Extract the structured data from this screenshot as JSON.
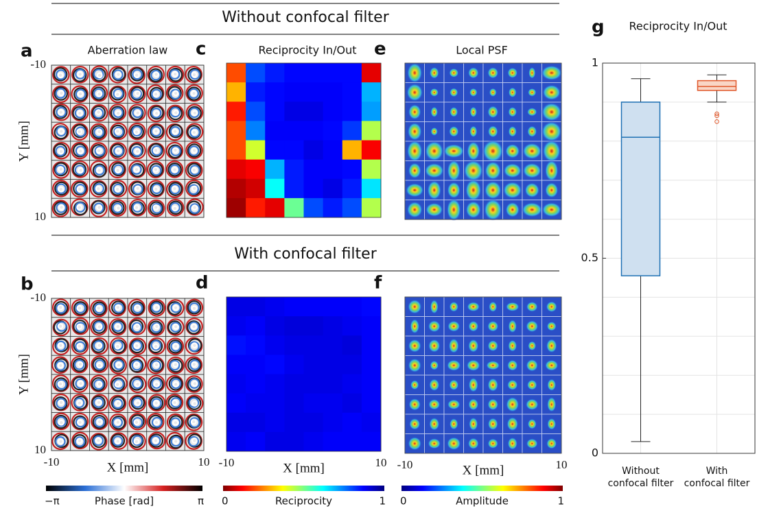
{
  "figure": {
    "headers": [
      "Without confocal filter",
      "With confocal filter"
    ],
    "panel_labels": [
      "a",
      "b",
      "c",
      "d",
      "e",
      "f",
      "g"
    ],
    "titles": [
      "Aberration law",
      "Reciprocity In/Out",
      "Local PSF"
    ],
    "x_label": "X [mm]",
    "y_label": "Y [mm]",
    "extent": [
      -10,
      10
    ],
    "colorbars": [
      {
        "label": "Phase [rad]",
        "ends": [
          "−π",
          "π"
        ]
      },
      {
        "label": "Reciprocity",
        "ends": [
          0,
          1
        ]
      },
      {
        "label": "Amplitude",
        "ends": [
          0,
          1
        ]
      }
    ]
  },
  "chart_data": [
    {
      "type": "heatmap",
      "values": [
        [
          0.2,
          0.8,
          0.85,
          0.87,
          0.87,
          0.87,
          0.87,
          0.1
        ],
        [
          0.3,
          0.85,
          0.87,
          0.88,
          0.88,
          0.88,
          0.87,
          0.7
        ],
        [
          0.15,
          0.8,
          0.87,
          0.9,
          0.9,
          0.88,
          0.87,
          0.72
        ],
        [
          0.2,
          0.75,
          0.88,
          0.88,
          0.88,
          0.87,
          0.82,
          0.45
        ],
        [
          0.2,
          0.42,
          0.87,
          0.87,
          0.9,
          0.88,
          0.3,
          0.12
        ],
        [
          0.1,
          0.12,
          0.7,
          0.85,
          0.88,
          0.88,
          0.87,
          0.45
        ],
        [
          0.05,
          0.08,
          0.62,
          0.85,
          0.88,
          0.9,
          0.85,
          0.65
        ],
        [
          0.03,
          0.15,
          0.1,
          0.52,
          0.8,
          0.85,
          0.8,
          0.45
        ]
      ]
    },
    {
      "type": "heatmap",
      "values": [
        [
          0.9,
          0.9,
          0.89,
          0.88,
          0.88,
          0.88,
          0.88,
          0.87
        ],
        [
          0.89,
          0.88,
          0.9,
          0.91,
          0.91,
          0.9,
          0.89,
          0.88
        ],
        [
          0.86,
          0.87,
          0.89,
          0.9,
          0.9,
          0.9,
          0.91,
          0.88
        ],
        [
          0.88,
          0.88,
          0.87,
          0.89,
          0.9,
          0.9,
          0.9,
          0.88
        ],
        [
          0.89,
          0.88,
          0.89,
          0.9,
          0.9,
          0.9,
          0.89,
          0.88
        ],
        [
          0.88,
          0.89,
          0.89,
          0.9,
          0.89,
          0.89,
          0.9,
          0.88
        ],
        [
          0.9,
          0.9,
          0.89,
          0.9,
          0.9,
          0.89,
          0.88,
          0.89
        ],
        [
          0.89,
          0.88,
          0.9,
          0.9,
          0.89,
          0.88,
          0.88,
          0.88
        ]
      ]
    },
    {
      "type": "box",
      "panel": "g",
      "title": "Reciprocity In/Out",
      "categories": [
        "Without confocal filter",
        "With confocal filter"
      ],
      "boxes": [
        {
          "color": "#1b6fb3",
          "fill": "#cfe0f0",
          "whislo": 0.03,
          "q1": 0.455,
          "med": 0.81,
          "q3": 0.9,
          "whishi": 0.96,
          "fliers": []
        },
        {
          "color": "#e0572a",
          "fill": "#f9d6c6",
          "whislo": 0.9,
          "q1": 0.93,
          "med": 0.94,
          "q3": 0.955,
          "whishi": 0.97,
          "fliers": [
            0.87,
            0.865,
            0.85
          ]
        }
      ],
      "ylim": [
        0,
        1
      ],
      "yticks": [
        0,
        0.5,
        1
      ],
      "minor_yticks": [
        0.1,
        0.2,
        0.3,
        0.4,
        0.6,
        0.7,
        0.8,
        0.9
      ],
      "grid": true
    }
  ]
}
